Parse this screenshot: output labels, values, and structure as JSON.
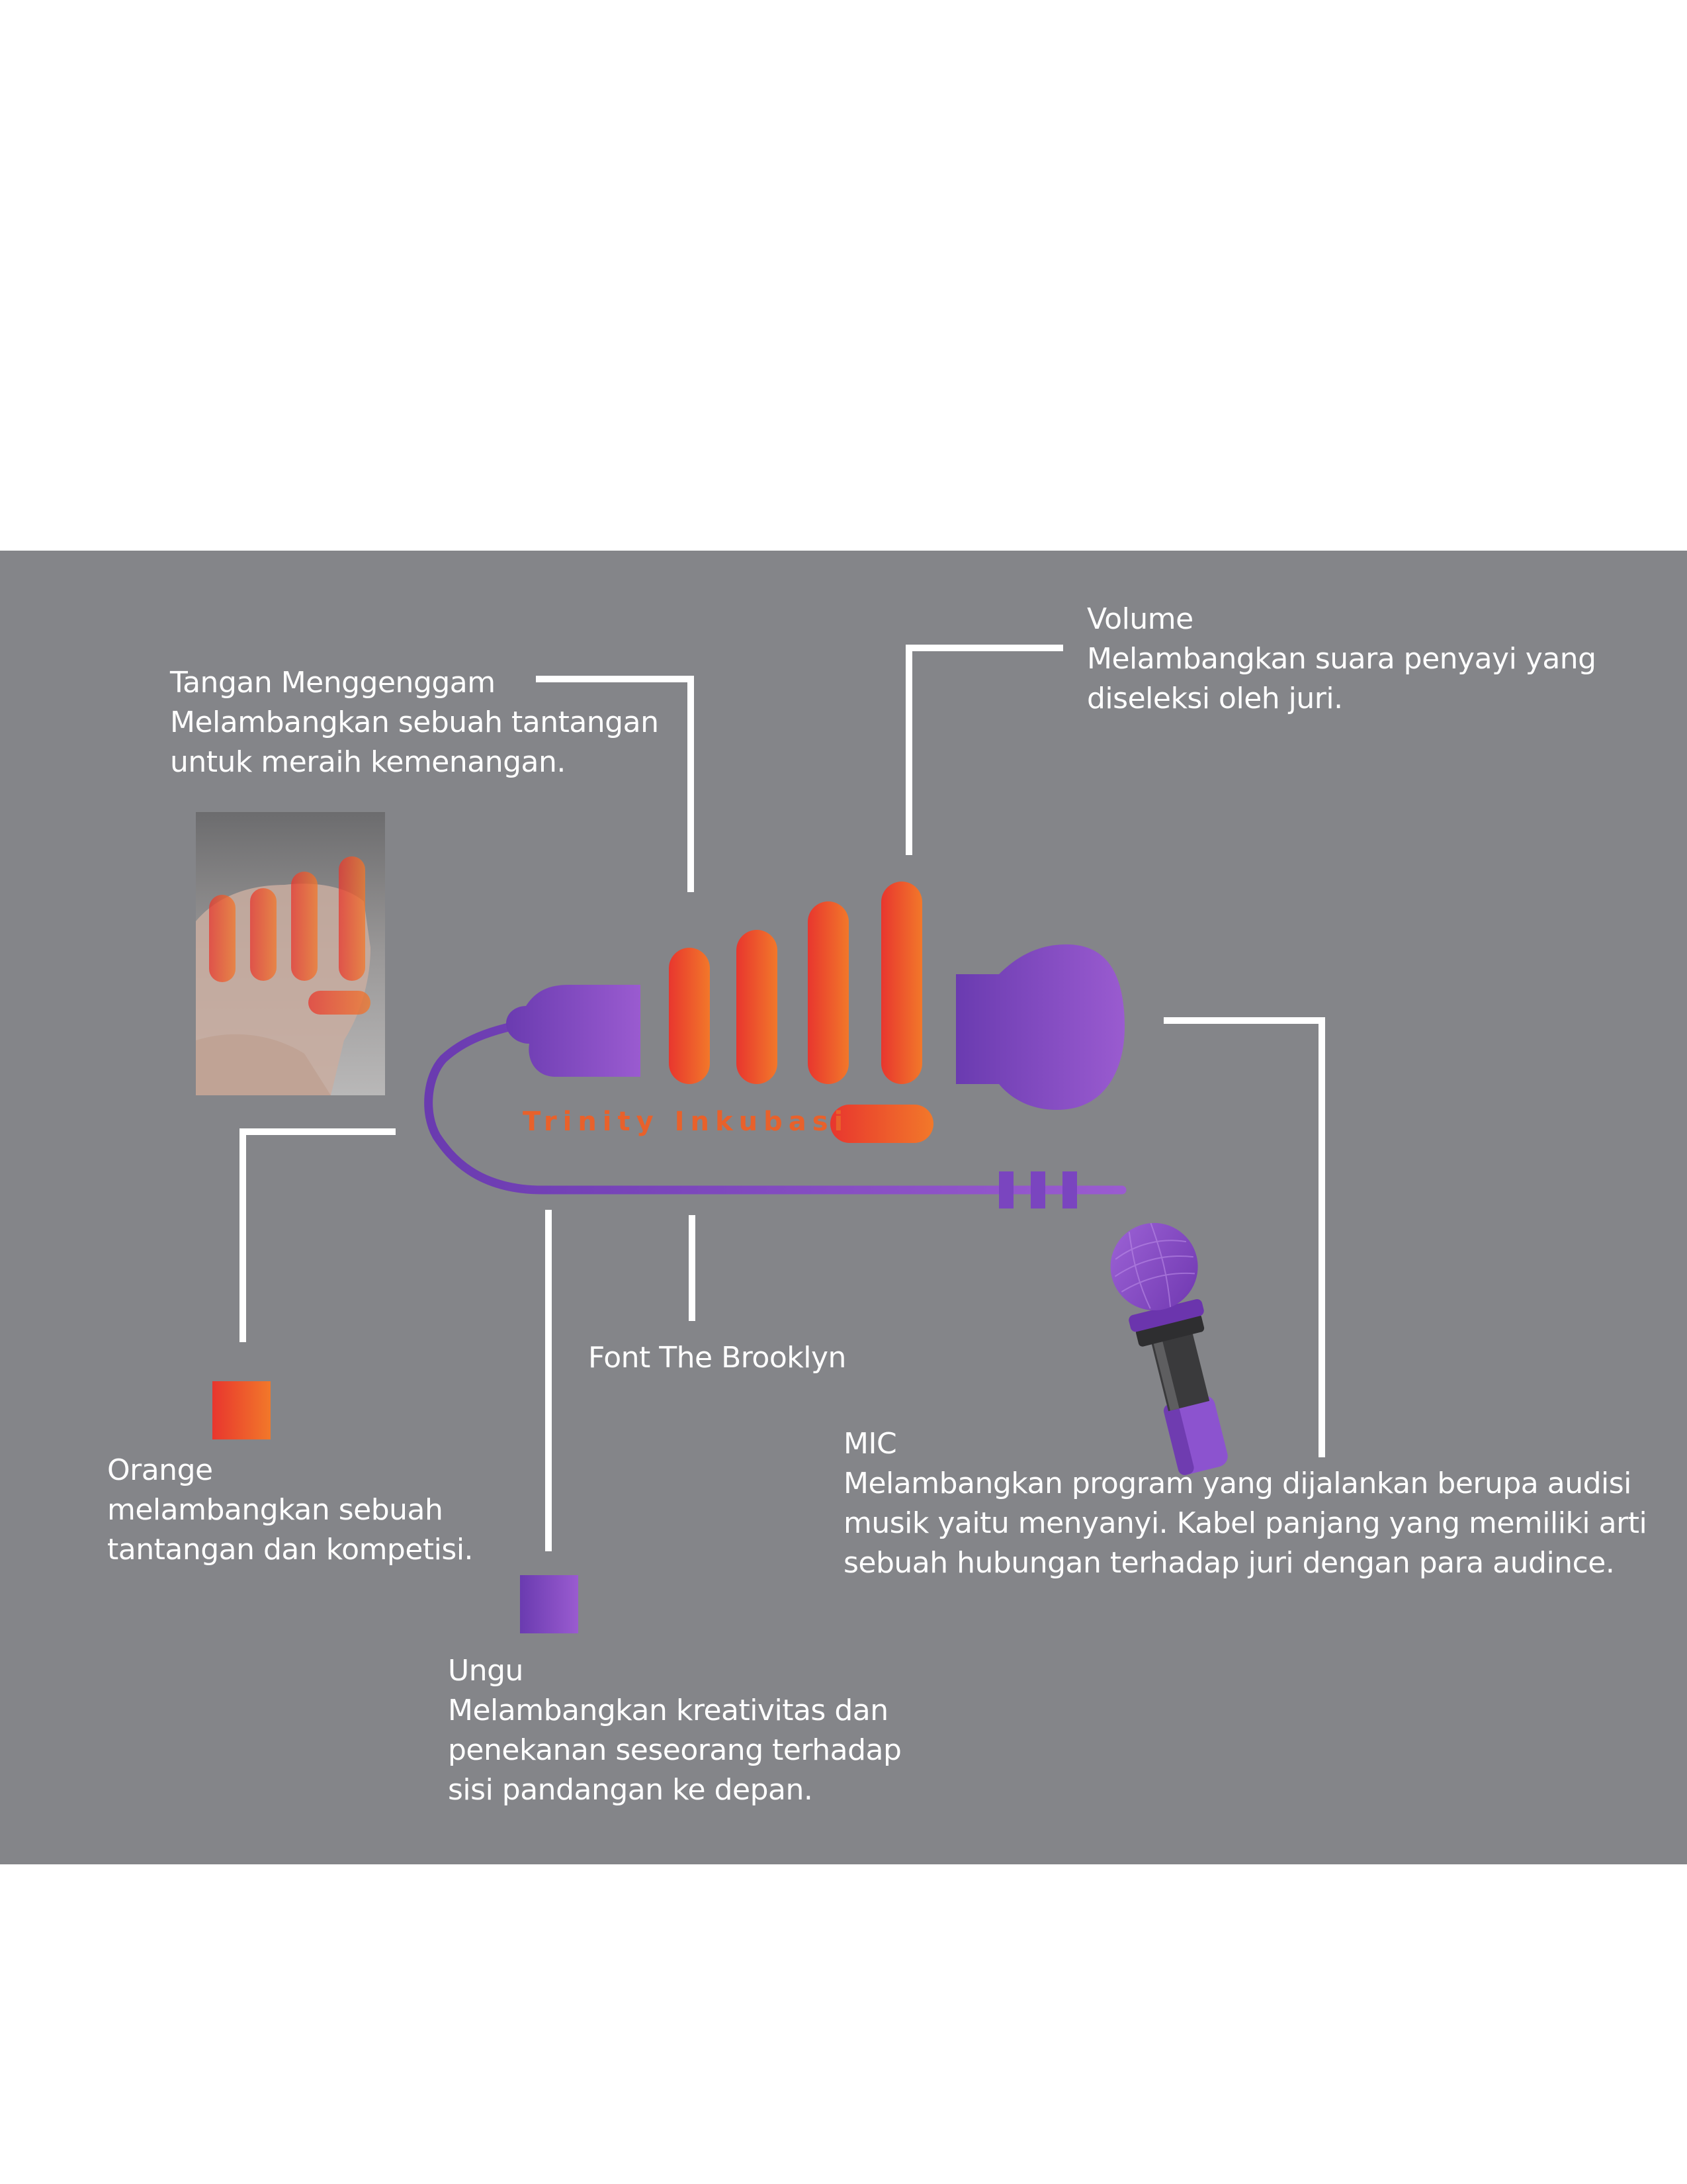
{
  "logo": {
    "wordmark": "Trinity Inkubasi"
  },
  "annotations": {
    "volume": {
      "title": "Volume",
      "lines": [
        "Melambangkan suara penyayi yang",
        "diseleksi oleh juri."
      ]
    },
    "hand": {
      "title": "Tangan Menggenggam",
      "lines": [
        "Melambangkan sebuah tantangan",
        "untuk meraih kemenangan."
      ]
    },
    "font": {
      "title": "Font The Brooklyn"
    },
    "mic": {
      "title": "MIC",
      "lines": [
        "Melambangkan program yang dijalankan berupa audisi",
        "musik yaitu menyanyi. Kabel panjang yang memiliki arti",
        "sebuah hubungan terhadap juri dengan para audince."
      ]
    },
    "orange": {
      "title": "Orange",
      "lines": [
        "melambangkan sebuah",
        "tantangan dan kompetisi."
      ]
    },
    "ungu": {
      "title": "Ungu",
      "lines": [
        "Melambangkan kreativitas dan",
        "penekanan seseorang terhadap",
        "sisi pandangan ke depan."
      ]
    }
  },
  "colors": {
    "background": "#848589",
    "orange_start": "#e8362e",
    "orange_end": "#f2782a",
    "purple_start": "#6a3bb0",
    "purple_end": "#9a5bd0",
    "leader_lines": "#ffffff",
    "text": "#ffffff"
  },
  "swatches": [
    {
      "name": "orange-swatch",
      "color": "#f05a28"
    },
    {
      "name": "purple-swatch",
      "color": "#8a4ccc"
    }
  ]
}
